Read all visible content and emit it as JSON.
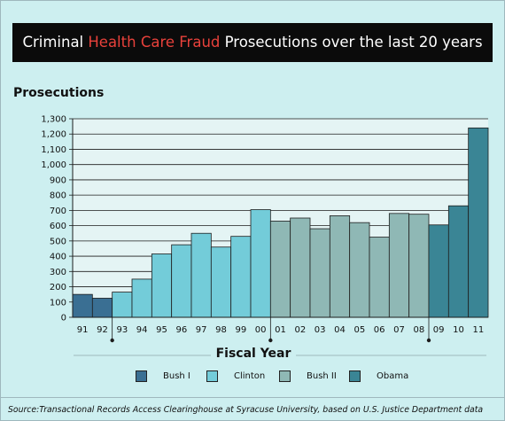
{
  "title": {
    "before": "Criminal ",
    "highlight": "Health Care Fraud",
    "after": " Prosecutions over the last 20 years"
  },
  "colors": {
    "background": "#cdeff0",
    "plot_background": "#e4f4f4",
    "title_bar": "#0b0b0b",
    "title_highlight": "#e8413b"
  },
  "source": "Source:Transactional Records Access Clearinghouse at Syracuse University, based on U.S. Justice Department data",
  "chart_data": {
    "type": "bar",
    "ylabel": "Prosecutions",
    "xlabel": "Fiscal Year",
    "ylim": [
      0,
      1300
    ],
    "yticks": [
      0,
      100,
      200,
      300,
      400,
      500,
      600,
      700,
      800,
      900,
      1000,
      1100,
      1200,
      1300
    ],
    "ytick_labels": [
      "0",
      "100",
      "200",
      "300",
      "400",
      "500",
      "600",
      "700",
      "800",
      "900",
      "1,000",
      "1,100",
      "1,200",
      "1,300"
    ],
    "grid": true,
    "categories": [
      "91",
      "92",
      "93",
      "94",
      "95",
      "96",
      "97",
      "98",
      "99",
      "00",
      "01",
      "02",
      "03",
      "04",
      "05",
      "06",
      "07",
      "08",
      "09",
      "10",
      "11"
    ],
    "values": [
      150,
      125,
      165,
      250,
      415,
      475,
      550,
      460,
      530,
      705,
      630,
      650,
      580,
      665,
      620,
      525,
      680,
      675,
      605,
      730,
      1240
    ],
    "administration": [
      "Bush I",
      "Bush I",
      "Clinton",
      "Clinton",
      "Clinton",
      "Clinton",
      "Clinton",
      "Clinton",
      "Clinton",
      "Clinton",
      "Bush II",
      "Bush II",
      "Bush II",
      "Bush II",
      "Bush II",
      "Bush II",
      "Bush II",
      "Bush II",
      "Obama",
      "Obama",
      "Obama"
    ],
    "legend": [
      {
        "name": "Bush I",
        "color": "#3a6f93"
      },
      {
        "name": "Clinton",
        "color": "#73ccd9"
      },
      {
        "name": "Bush II",
        "color": "#8fb8b5"
      },
      {
        "name": "Obama",
        "color": "#3a8595"
      }
    ],
    "transitions_after": [
      "92",
      "00",
      "08"
    ],
    "legend_position": "bottom"
  }
}
